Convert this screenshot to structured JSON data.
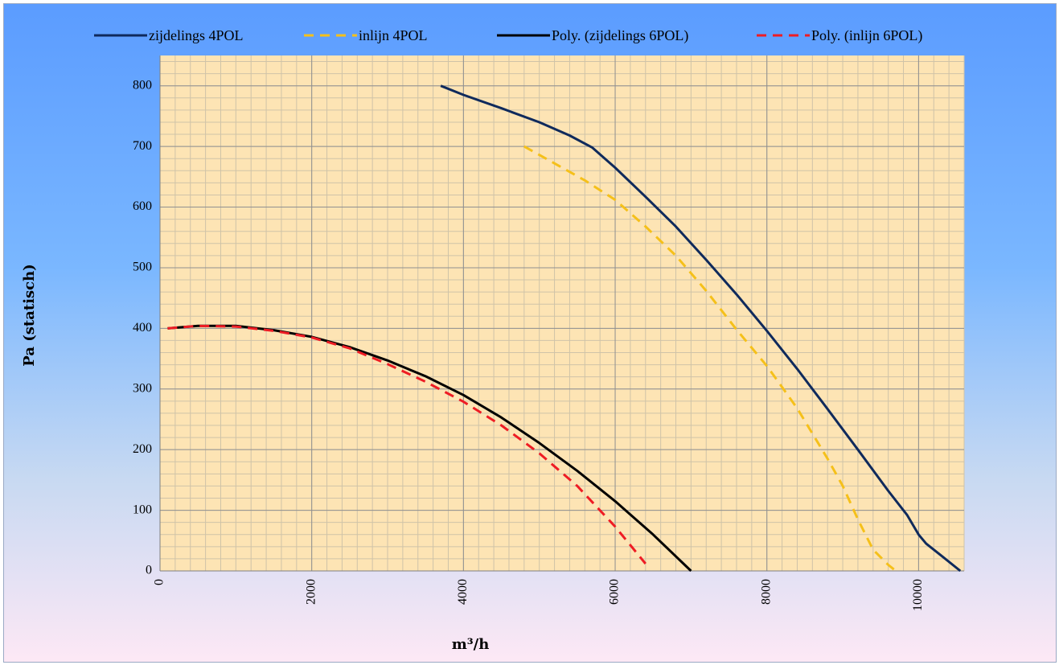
{
  "chart_data": {
    "type": "line",
    "title": "",
    "xlabel": "m³/h",
    "ylabel": "Pa (statisch)",
    "xlim": [
      0,
      10600
    ],
    "ylim": [
      0,
      850
    ],
    "x_major_ticks": [
      0,
      2000,
      4000,
      6000,
      8000,
      10000
    ],
    "y_major_ticks": [
      0,
      100,
      200,
      300,
      400,
      500,
      600,
      700,
      800
    ],
    "grid": true,
    "legend_position": "top",
    "colors": {
      "plot_background": "#fde4b4",
      "minor_grid": "#cfc3a8",
      "major_grid": "#909090"
    },
    "series": [
      {
        "name": "zijdelings 4POL",
        "color": "#0f2a5c",
        "dash": "solid",
        "x": [
          3700,
          4000,
          4500,
          5000,
          5400,
          5700,
          6000,
          6400,
          6800,
          7200,
          7600,
          8000,
          8400,
          8800,
          9200,
          9600,
          9850,
          10000,
          10100,
          10300,
          10550
        ],
        "y": [
          800,
          785,
          763,
          740,
          718,
          698,
          665,
          617,
          568,
          513,
          456,
          396,
          333,
          267,
          200,
          132,
          92,
          60,
          45,
          25,
          0
        ]
      },
      {
        "name": "inlijn 4POL",
        "color": "#f5c01a",
        "dash": "dashed",
        "x": [
          4800,
          5200,
          5600,
          6000,
          6400,
          6800,
          7200,
          7600,
          8000,
          8400,
          8800,
          9000,
          9200,
          9400,
          9600,
          9700
        ],
        "y": [
          700,
          672,
          644,
          612,
          568,
          520,
          462,
          398,
          338,
          268,
          185,
          140,
          85,
          35,
          10,
          0
        ]
      },
      {
        "name": "Poly. (zijdelings 6POL)",
        "color": "#000000",
        "dash": "solid",
        "x": [
          100,
          500,
          1000,
          1500,
          2000,
          2500,
          3000,
          3500,
          4000,
          4500,
          5000,
          5500,
          6000,
          6500,
          7000
        ],
        "y": [
          400,
          404,
          404,
          397,
          386,
          369,
          347,
          321,
          290,
          253,
          211,
          165,
          115,
          60,
          0
        ]
      },
      {
        "name": "Poly. (inlijn 6POL)",
        "color": "#ee1c24",
        "dash": "dashed",
        "x": [
          100,
          500,
          1000,
          1500,
          2000,
          2500,
          3000,
          3500,
          4000,
          4500,
          5000,
          5500,
          6000,
          6400
        ],
        "y": [
          400,
          404,
          403,
          396,
          385,
          367,
          341,
          312,
          279,
          240,
          194,
          140,
          73,
          12
        ]
      }
    ]
  }
}
